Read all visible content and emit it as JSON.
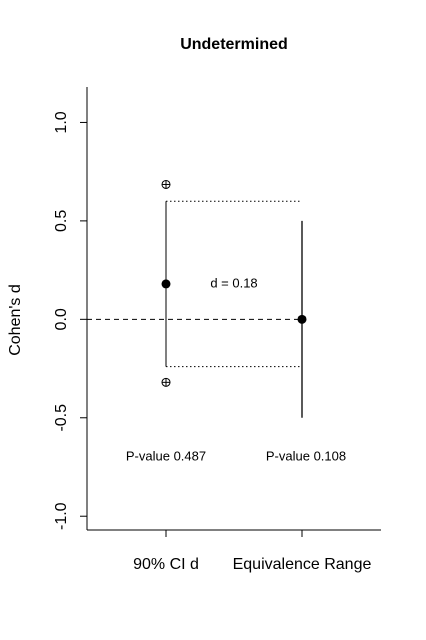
{
  "chart_data": {
    "type": "interval",
    "title": "Undetermined",
    "y_label": "Cohen's d",
    "categories": [
      "90% CI d",
      "Equivalence Range"
    ],
    "estimates": [
      0.18,
      0
    ],
    "lower": [
      -0.24,
      -0.5
    ],
    "upper": [
      0.6,
      0.5
    ],
    "outer_markers": [
      0.685,
      -0.32
    ],
    "annotation": "d =  0.18",
    "p_values": [
      "P-value 0.487",
      "P-value 0.108"
    ],
    "p_value_y": -0.7,
    "reference_line": 0,
    "ylim": [
      -1.07,
      1.18
    ],
    "yticks": [
      {
        "value": -1,
        "label": "-1.0"
      },
      {
        "value": -0.5,
        "label": "-0.5"
      },
      {
        "value": 0,
        "label": "0.0"
      },
      {
        "value": 0.5,
        "label": "0.5"
      },
      {
        "value": 1,
        "label": "1.0"
      }
    ],
    "color": "#000000"
  }
}
